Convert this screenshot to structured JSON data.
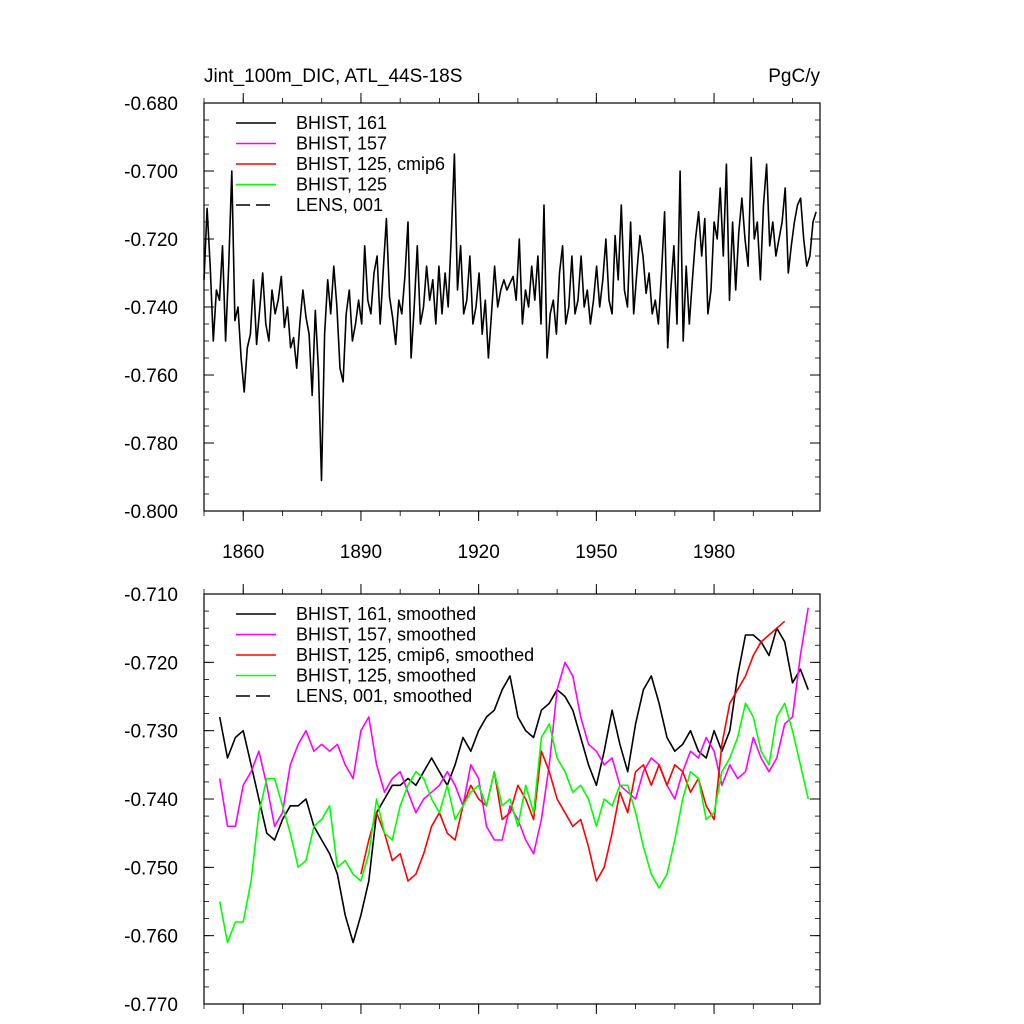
{
  "colors": {
    "black": "#000000",
    "magenta": "#ff00ff",
    "red": "#ff0000",
    "green": "#00ff00",
    "background": "#ffffff"
  },
  "chart_data": [
    {
      "type": "line",
      "title": "Jint_100m_DIC, ATL_44S-18S",
      "units": "PgC/y",
      "xlim": [
        1850,
        2007
      ],
      "ylim": [
        -0.8,
        -0.68
      ],
      "x_ticks": [
        1860,
        1890,
        1920,
        1950,
        1980
      ],
      "x_tick_labels": [
        "1860",
        "1890",
        "1920",
        "1950",
        "1980"
      ],
      "y_ticks": [
        -0.8,
        -0.78,
        -0.76,
        -0.74,
        -0.72,
        -0.7,
        -0.68
      ],
      "y_tick_labels": [
        "-0.800",
        "-0.780",
        "-0.760",
        "-0.740",
        "-0.720",
        "-0.700",
        "-0.680"
      ],
      "legend": [
        {
          "label": "BHIST, 161",
          "color": "#000000",
          "dash": false
        },
        {
          "label": "BHIST, 157",
          "color": "#ff00ff",
          "dash": false
        },
        {
          "label": "BHIST, 125, cmip6",
          "color": "#ff0000",
          "dash": false
        },
        {
          "label": "BHIST, 125",
          "color": "#00ff00",
          "dash": false
        },
        {
          "label": "LENS, 001",
          "color": "#000000",
          "dash": true
        }
      ],
      "series": [
        {
          "name": "BHIST, 161",
          "color": "#000000",
          "x_start": 1850,
          "values": [
            -0.732,
            -0.711,
            -0.728,
            -0.75,
            -0.735,
            -0.738,
            -0.722,
            -0.75,
            -0.728,
            -0.7,
            -0.744,
            -0.74,
            -0.755,
            -0.765,
            -0.752,
            -0.748,
            -0.732,
            -0.751,
            -0.741,
            -0.73,
            -0.745,
            -0.75,
            -0.735,
            -0.742,
            -0.738,
            -0.731,
            -0.746,
            -0.74,
            -0.752,
            -0.749,
            -0.758,
            -0.745,
            -0.735,
            -0.743,
            -0.748,
            -0.766,
            -0.741,
            -0.758,
            -0.791,
            -0.748,
            -0.732,
            -0.742,
            -0.728,
            -0.74,
            -0.758,
            -0.762,
            -0.742,
            -0.735,
            -0.75,
            -0.745,
            -0.738,
            -0.745,
            -0.722,
            -0.738,
            -0.742,
            -0.73,
            -0.725,
            -0.745,
            -0.729,
            -0.714,
            -0.737,
            -0.743,
            -0.751,
            -0.738,
            -0.742,
            -0.731,
            -0.715,
            -0.755,
            -0.74,
            -0.722,
            -0.745,
            -0.74,
            -0.728,
            -0.738,
            -0.732,
            -0.745,
            -0.728,
            -0.742,
            -0.73,
            -0.74,
            -0.719,
            -0.695,
            -0.735,
            -0.722,
            -0.742,
            -0.738,
            -0.725,
            -0.745,
            -0.74,
            -0.73,
            -0.748,
            -0.738,
            -0.755,
            -0.742,
            -0.728,
            -0.74,
            -0.735,
            -0.732,
            -0.735,
            -0.733,
            -0.731,
            -0.738,
            -0.72,
            -0.745,
            -0.735,
            -0.74,
            -0.728,
            -0.738,
            -0.725,
            -0.745,
            -0.71,
            -0.755,
            -0.742,
            -0.738,
            -0.748,
            -0.73,
            -0.722,
            -0.745,
            -0.74,
            -0.725,
            -0.742,
            -0.738,
            -0.725,
            -0.74,
            -0.735,
            -0.745,
            -0.738,
            -0.728,
            -0.74,
            -0.732,
            -0.72,
            -0.738,
            -0.742,
            -0.719,
            -0.732,
            -0.71,
            -0.735,
            -0.74,
            -0.715,
            -0.742,
            -0.73,
            -0.719,
            -0.725,
            -0.736,
            -0.73,
            -0.742,
            -0.738,
            -0.745,
            -0.73,
            -0.712,
            -0.752,
            -0.735,
            -0.722,
            -0.745,
            -0.7,
            -0.75,
            -0.728,
            -0.745,
            -0.732,
            -0.72,
            -0.712,
            -0.725,
            -0.714,
            -0.742,
            -0.735,
            -0.715,
            -0.72,
            -0.705,
            -0.725,
            -0.698,
            -0.738,
            -0.715,
            -0.735,
            -0.718,
            -0.708,
            -0.72,
            -0.728,
            -0.696,
            -0.72,
            -0.715,
            -0.732,
            -0.71,
            -0.698,
            -0.722,
            -0.715,
            -0.725,
            -0.72,
            -0.715,
            -0.705,
            -0.73,
            -0.722,
            -0.715,
            -0.71,
            -0.708,
            -0.72,
            -0.728,
            -0.725,
            -0.715,
            -0.712
          ]
        }
      ]
    },
    {
      "type": "line",
      "title": "",
      "xlim": [
        1850,
        2007
      ],
      "ylim": [
        -0.77,
        -0.71
      ],
      "x_ticks": [
        1860,
        1890,
        1920,
        1950,
        1980
      ],
      "x_tick_labels": [],
      "y_ticks": [
        -0.77,
        -0.76,
        -0.75,
        -0.74,
        -0.73,
        -0.72,
        -0.71
      ],
      "y_tick_labels": [
        "-0.770",
        "-0.760",
        "-0.750",
        "-0.740",
        "-0.730",
        "-0.720",
        "-0.710"
      ],
      "legend": [
        {
          "label": "BHIST, 161, smoothed",
          "color": "#000000",
          "dash": false
        },
        {
          "label": "BHIST, 157, smoothed",
          "color": "#ff00ff",
          "dash": false
        },
        {
          "label": "BHIST, 125, cmip6, smoothed",
          "color": "#ff0000",
          "dash": false
        },
        {
          "label": "BHIST, 125, smoothed",
          "color": "#00ff00",
          "dash": false
        },
        {
          "label": "LENS, 001, smoothed",
          "color": "#000000",
          "dash": true
        }
      ],
      "series": [
        {
          "name": "BHIST, 161, smoothed",
          "color": "#000000",
          "x": [
            1854,
            1856,
            1858,
            1860,
            1862,
            1864,
            1866,
            1868,
            1870,
            1872,
            1874,
            1876,
            1878,
            1880,
            1882,
            1884,
            1886,
            1888,
            1890,
            1892,
            1894,
            1896,
            1898,
            1900,
            1902,
            1904,
            1906,
            1908,
            1910,
            1912,
            1914,
            1916,
            1918,
            1920,
            1922,
            1924,
            1926,
            1928,
            1930,
            1932,
            1934,
            1936,
            1938,
            1940,
            1942,
            1944,
            1946,
            1948,
            1950,
            1952,
            1954,
            1956,
            1958,
            1960,
            1962,
            1964,
            1966,
            1968,
            1970,
            1972,
            1974,
            1976,
            1978,
            1980,
            1982,
            1984,
            1986,
            1988,
            1990,
            1992,
            1994,
            1996,
            1998,
            2000,
            2002,
            2004
          ],
          "values": [
            -0.728,
            -0.734,
            -0.731,
            -0.73,
            -0.735,
            -0.74,
            -0.745,
            -0.746,
            -0.743,
            -0.741,
            -0.741,
            -0.74,
            -0.744,
            -0.746,
            -0.748,
            -0.751,
            -0.757,
            -0.761,
            -0.757,
            -0.752,
            -0.742,
            -0.74,
            -0.738,
            -0.738,
            -0.737,
            -0.738,
            -0.736,
            -0.734,
            -0.736,
            -0.738,
            -0.735,
            -0.731,
            -0.733,
            -0.73,
            -0.728,
            -0.727,
            -0.724,
            -0.722,
            -0.728,
            -0.73,
            -0.731,
            -0.727,
            -0.726,
            -0.724,
            -0.725,
            -0.727,
            -0.731,
            -0.735,
            -0.738,
            -0.733,
            -0.727,
            -0.732,
            -0.736,
            -0.729,
            -0.724,
            -0.722,
            -0.726,
            -0.731,
            -0.733,
            -0.732,
            -0.73,
            -0.733,
            -0.734,
            -0.73,
            -0.733,
            -0.73,
            -0.722,
            -0.716,
            -0.716,
            -0.717,
            -0.719,
            -0.715,
            -0.717,
            -0.723,
            -0.721,
            -0.724
          ]
        },
        {
          "name": "BHIST, 157, smoothed",
          "color": "#ff00ff",
          "x": [
            1854,
            1856,
            1858,
            1860,
            1862,
            1864,
            1866,
            1868,
            1870,
            1872,
            1874,
            1876,
            1878,
            1880,
            1882,
            1884,
            1886,
            1888,
            1890,
            1892,
            1894,
            1896,
            1898,
            1900,
            1902,
            1904,
            1906,
            1908,
            1910,
            1912,
            1914,
            1916,
            1918,
            1920,
            1922,
            1924,
            1926,
            1928,
            1930,
            1932,
            1934,
            1936,
            1938,
            1940,
            1942,
            1944,
            1946,
            1948,
            1950,
            1952,
            1954,
            1956,
            1958,
            1960,
            1962,
            1964,
            1966,
            1968,
            1970,
            1972,
            1974,
            1976,
            1978,
            1980,
            1982,
            1984,
            1986,
            1988,
            1990,
            1992,
            1994,
            1996,
            1998,
            2000,
            2002,
            2004
          ],
          "values": [
            -0.737,
            -0.744,
            -0.744,
            -0.738,
            -0.736,
            -0.733,
            -0.738,
            -0.744,
            -0.742,
            -0.735,
            -0.732,
            -0.73,
            -0.733,
            -0.732,
            -0.733,
            -0.732,
            -0.735,
            -0.737,
            -0.73,
            -0.728,
            -0.735,
            -0.739,
            -0.737,
            -0.736,
            -0.739,
            -0.742,
            -0.74,
            -0.739,
            -0.738,
            -0.736,
            -0.738,
            -0.741,
            -0.735,
            -0.737,
            -0.744,
            -0.746,
            -0.746,
            -0.741,
            -0.743,
            -0.746,
            -0.748,
            -0.743,
            -0.735,
            -0.724,
            -0.72,
            -0.722,
            -0.728,
            -0.732,
            -0.733,
            -0.735,
            -0.734,
            -0.738,
            -0.739,
            -0.74,
            -0.736,
            -0.734,
            -0.735,
            -0.738,
            -0.74,
            -0.736,
            -0.733,
            -0.734,
            -0.731,
            -0.733,
            -0.738,
            -0.735,
            -0.737,
            -0.736,
            -0.731,
            -0.734,
            -0.736,
            -0.734,
            -0.729,
            -0.728,
            -0.719,
            -0.712
          ]
        },
        {
          "name": "BHIST, 125, cmip6, smoothed",
          "color": "#ff0000",
          "x": [
            1890,
            1892,
            1894,
            1896,
            1898,
            1900,
            1902,
            1904,
            1906,
            1908,
            1910,
            1912,
            1914,
            1916,
            1918,
            1920,
            1922,
            1924,
            1926,
            1928,
            1930,
            1932,
            1934,
            1936,
            1938,
            1940,
            1942,
            1944,
            1946,
            1948,
            1950,
            1952,
            1954,
            1956,
            1958,
            1960,
            1962,
            1964,
            1966,
            1968,
            1970,
            1972,
            1974,
            1976,
            1978,
            1980,
            1982,
            1984,
            1986,
            1988,
            1990,
            1992,
            1994,
            1996,
            1998
          ],
          "values": [
            -0.751,
            -0.746,
            -0.742,
            -0.745,
            -0.749,
            -0.748,
            -0.752,
            -0.751,
            -0.748,
            -0.744,
            -0.742,
            -0.745,
            -0.746,
            -0.741,
            -0.738,
            -0.74,
            -0.741,
            -0.736,
            -0.743,
            -0.742,
            -0.738,
            -0.74,
            -0.743,
            -0.733,
            -0.736,
            -0.74,
            -0.742,
            -0.744,
            -0.743,
            -0.747,
            -0.752,
            -0.75,
            -0.745,
            -0.739,
            -0.742,
            -0.736,
            -0.735,
            -0.738,
            -0.735,
            -0.738,
            -0.735,
            -0.736,
            -0.739,
            -0.737,
            -0.741,
            -0.743,
            -0.732,
            -0.726,
            -0.724,
            -0.722,
            -0.719,
            -0.717,
            -0.716,
            -0.715,
            -0.714
          ]
        },
        {
          "name": "BHIST, 125, smoothed",
          "color": "#00ff00",
          "x": [
            1854,
            1856,
            1858,
            1860,
            1862,
            1864,
            1866,
            1868,
            1870,
            1872,
            1874,
            1876,
            1878,
            1880,
            1882,
            1884,
            1886,
            1888,
            1890,
            1892,
            1894,
            1896,
            1898,
            1900,
            1902,
            1904,
            1906,
            1908,
            1910,
            1912,
            1914,
            1916,
            1918,
            1920,
            1922,
            1924,
            1926,
            1928,
            1930,
            1932,
            1934,
            1936,
            1938,
            1940,
            1942,
            1944,
            1946,
            1948,
            1950,
            1952,
            1954,
            1956,
            1958,
            1960,
            1962,
            1964,
            1966,
            1968,
            1970,
            1972,
            1974,
            1976,
            1978,
            1980,
            1982,
            1984,
            1986,
            1988,
            1990,
            1992,
            1994,
            1996,
            1998,
            2000,
            2002,
            2004
          ],
          "values": [
            -0.755,
            -0.761,
            -0.758,
            -0.758,
            -0.752,
            -0.742,
            -0.737,
            -0.737,
            -0.741,
            -0.745,
            -0.75,
            -0.749,
            -0.744,
            -0.743,
            -0.741,
            -0.75,
            -0.749,
            -0.751,
            -0.752,
            -0.748,
            -0.74,
            -0.745,
            -0.746,
            -0.741,
            -0.738,
            -0.736,
            -0.737,
            -0.74,
            -0.742,
            -0.738,
            -0.743,
            -0.741,
            -0.739,
            -0.738,
            -0.741,
            -0.736,
            -0.741,
            -0.74,
            -0.744,
            -0.738,
            -0.742,
            -0.731,
            -0.729,
            -0.734,
            -0.736,
            -0.739,
            -0.738,
            -0.74,
            -0.744,
            -0.74,
            -0.741,
            -0.738,
            -0.738,
            -0.742,
            -0.747,
            -0.751,
            -0.753,
            -0.751,
            -0.746,
            -0.74,
            -0.736,
            -0.737,
            -0.743,
            -0.742,
            -0.736,
            -0.734,
            -0.731,
            -0.726,
            -0.728,
            -0.733,
            -0.735,
            -0.728,
            -0.726,
            -0.73,
            -0.735,
            -0.74
          ]
        }
      ]
    }
  ]
}
